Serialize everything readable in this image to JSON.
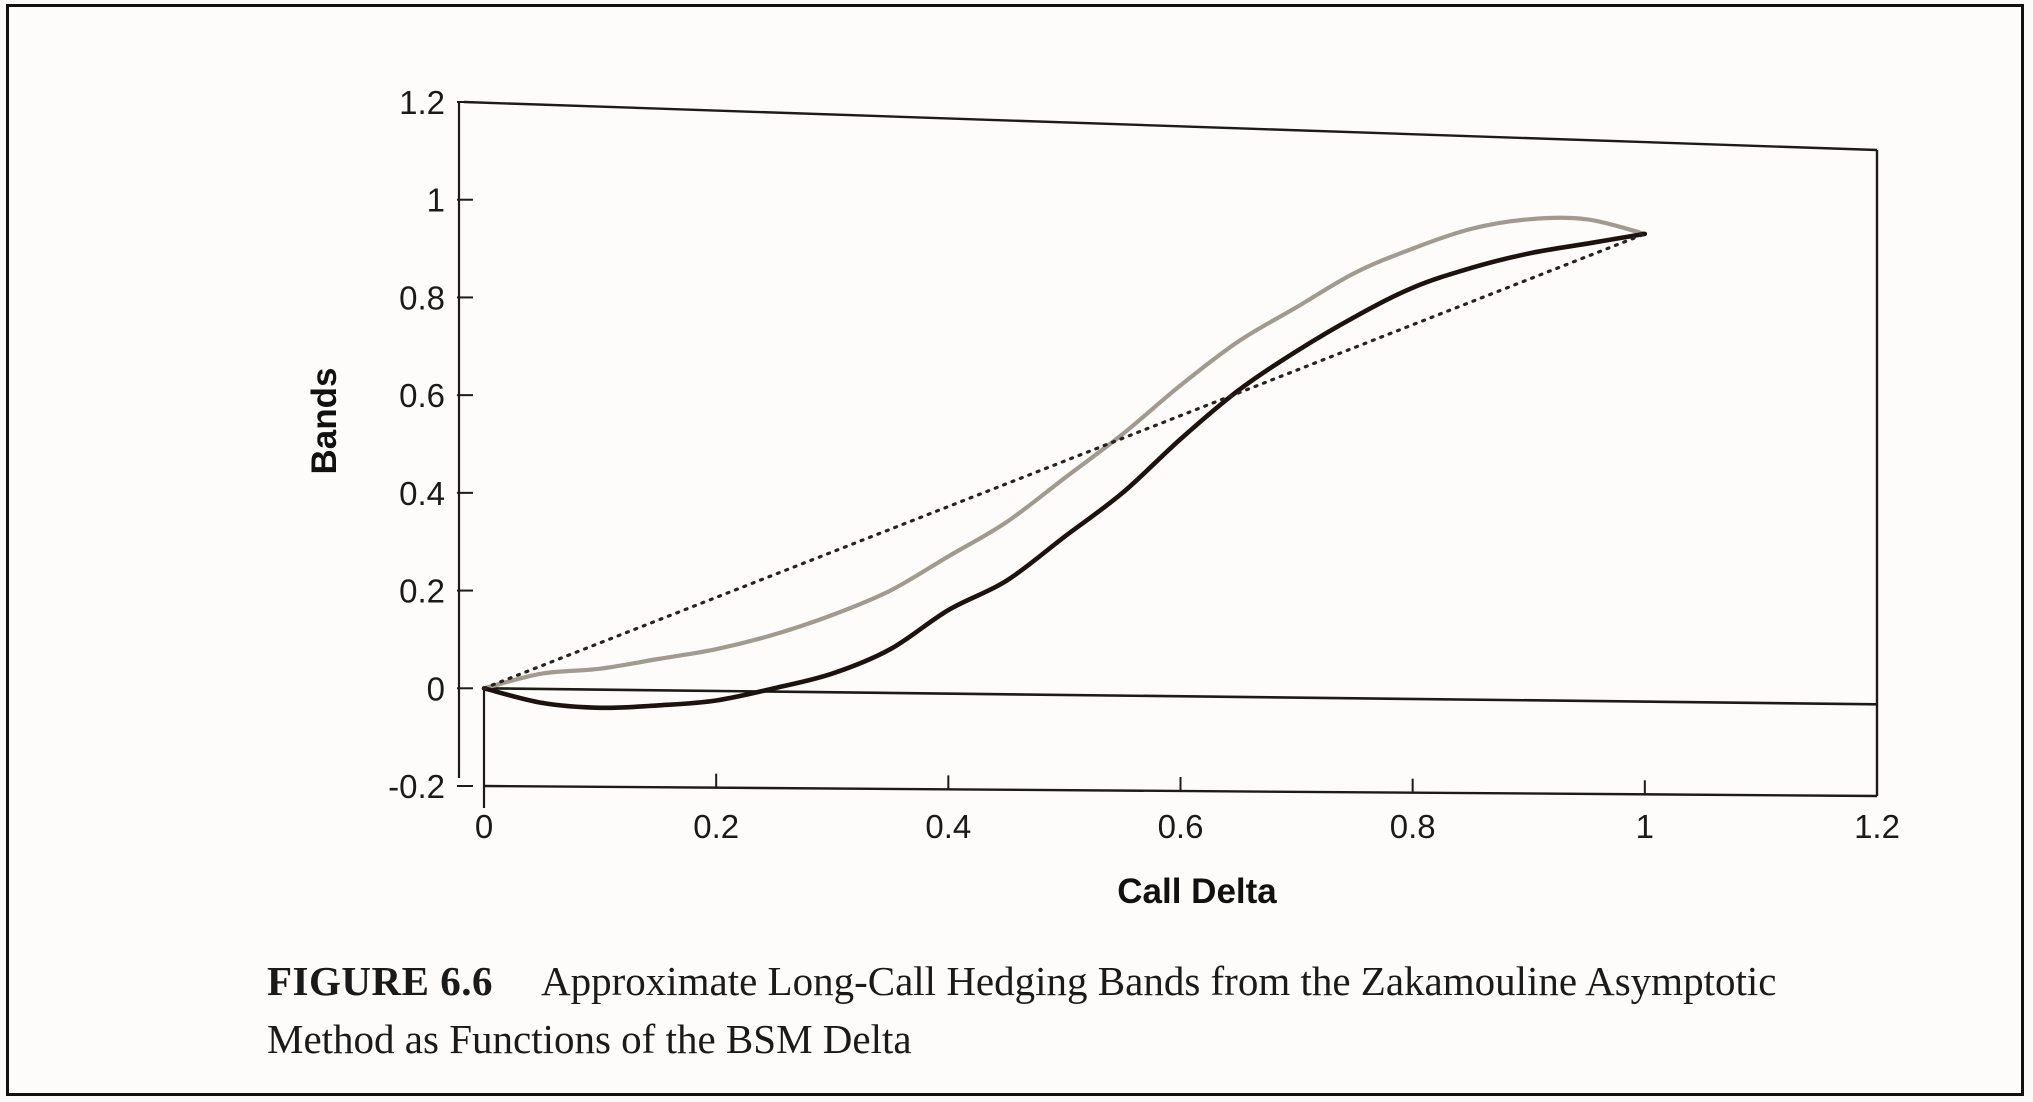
{
  "chart_data": {
    "type": "line",
    "xlabel": "Call Delta",
    "ylabel": "Bands",
    "xlim": [
      0,
      1.2
    ],
    "ylim": [
      -0.2,
      1.2
    ],
    "x_ticks": [
      "0",
      "0.2",
      "0.4",
      "0.6",
      "0.8",
      "1",
      "1.2"
    ],
    "y_ticks": [
      "-0.2",
      "0",
      "0.2",
      "0.4",
      "0.6",
      "0.8",
      "1",
      "1.2"
    ],
    "x_tick_values": [
      0,
      0.2,
      0.4,
      0.6,
      0.8,
      1,
      1.2
    ],
    "y_tick_values": [
      -0.2,
      0,
      0.2,
      0.4,
      0.6,
      0.8,
      1,
      1.2
    ],
    "grid": false,
    "legend": "none",
    "series": [
      {
        "style": "gray-solid",
        "color": "#a29a8f",
        "x": [
          0,
          0.05,
          0.1,
          0.15,
          0.2,
          0.25,
          0.3,
          0.35,
          0.4,
          0.45,
          0.5,
          0.55,
          0.6,
          0.65,
          0.7,
          0.75,
          0.8,
          0.85,
          0.9,
          0.95,
          1.0
        ],
        "y": [
          0,
          0.03,
          0.04,
          0.06,
          0.08,
          0.11,
          0.15,
          0.2,
          0.27,
          0.34,
          0.43,
          0.52,
          0.62,
          0.71,
          0.78,
          0.85,
          0.9,
          0.94,
          0.96,
          0.96,
          0.93
        ]
      },
      {
        "style": "black-solid",
        "color": "#1e120e",
        "x": [
          0,
          0.05,
          0.1,
          0.15,
          0.2,
          0.25,
          0.3,
          0.35,
          0.4,
          0.45,
          0.5,
          0.55,
          0.6,
          0.65,
          0.7,
          0.75,
          0.8,
          0.85,
          0.9,
          0.95,
          1.0
        ],
        "y": [
          0,
          -0.03,
          -0.04,
          -0.035,
          -0.025,
          0.0,
          0.03,
          0.08,
          0.16,
          0.22,
          0.31,
          0.4,
          0.51,
          0.61,
          0.69,
          0.76,
          0.82,
          0.86,
          0.89,
          0.91,
          0.93
        ]
      },
      {
        "style": "dotted",
        "color": "#2a2220",
        "x": [
          0,
          1.0
        ],
        "y": [
          0,
          0.93
        ]
      }
    ]
  },
  "caption": {
    "label": "FIGURE 6.6",
    "text": "Approximate Long-Call Hedging Bands from the Zakamouline Asymptotic Method as Functions of the BSM Delta"
  }
}
